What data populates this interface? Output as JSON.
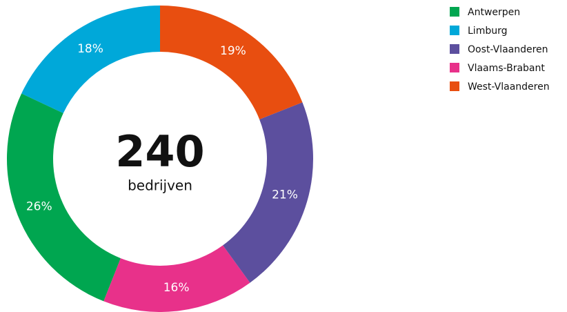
{
  "chart_data": {
    "type": "donut",
    "center_text": "240",
    "center_caption": "bedrijven",
    "categories": [
      "West-Vlaanderen",
      "Oost-Vlaanderen",
      "Vlaams-Brabant",
      "Antwerpen",
      "Limburg"
    ],
    "values": [
      19,
      21,
      16,
      26,
      18
    ],
    "value_labels": [
      "19%",
      "21%",
      "16%",
      "26%",
      "18%"
    ],
    "colors": [
      "#e84e10",
      "#5c4f9e",
      "#e8318a",
      "#00a650",
      "#00a8d9"
    ]
  }
}
